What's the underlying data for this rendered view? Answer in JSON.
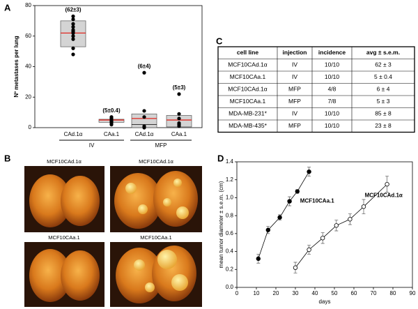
{
  "panel_labels": [
    "A",
    "B",
    "C",
    "D"
  ],
  "chart_data": [
    {
      "type": "box",
      "ylabel": "Nº metastases per lung",
      "ylim": [
        0,
        80
      ],
      "yticks": [
        0,
        20,
        40,
        60,
        80
      ],
      "categories": [
        "CAd.1α",
        "CAa.1",
        "CAd.1α",
        "CAa.1"
      ],
      "groups": [
        "IV",
        "MFP"
      ],
      "box_color": "#d4d4d4",
      "mean_color": "#e0261f",
      "boxes": [
        {
          "q1": 53,
          "median": 62,
          "q3": 70,
          "mean": 62,
          "annotation": "(62±3)",
          "points": [
            73,
            71,
            68,
            66,
            64,
            63,
            62,
            60,
            58,
            52,
            48
          ]
        },
        {
          "q1": 3.5,
          "median": 5,
          "q3": 5.5,
          "mean": 5,
          "annotation": "(5±0.4)",
          "points": [
            7,
            6,
            5,
            5,
            4,
            4,
            3,
            2
          ]
        },
        {
          "q1": 0,
          "median": 2,
          "q3": 9,
          "mean": 6,
          "annotation": "(6±4)",
          "points": [
            36,
            11,
            7,
            1,
            0
          ]
        },
        {
          "q1": 0.5,
          "median": 5,
          "q3": 8,
          "mean": 5,
          "annotation": "(5±3)",
          "points": [
            22,
            9,
            6,
            3,
            2,
            1
          ]
        }
      ]
    },
    {
      "type": "line",
      "xlabel": "days",
      "ylabel": "mean tumor diameter ± s.e.m. (cm)",
      "xlim": [
        0,
        90
      ],
      "xticks": [
        0,
        10,
        20,
        30,
        40,
        50,
        60,
        70,
        80,
        90
      ],
      "ylim": [
        0,
        1.4
      ],
      "yticks": [
        {
          "value": 0,
          "label": "0.0"
        },
        0.2,
        0.4,
        0.6,
        0.8,
        {
          "value": 1,
          "label": "1.0"
        },
        1.2,
        1.4
      ],
      "series": [
        {
          "name": "MCF10CAa.1",
          "marker": "filled",
          "color": "#000000",
          "x": [
            11,
            16,
            22,
            27,
            31,
            37
          ],
          "y": [
            0.32,
            0.64,
            0.78,
            0.96,
            1.07,
            1.29
          ],
          "err": [
            0.05,
            0.04,
            0.03,
            0.05,
            0.02,
            0.05
          ]
        },
        {
          "name": "MCF10CAd.1α",
          "marker": "open",
          "color": "#000000",
          "x": [
            30,
            37,
            44,
            51,
            58,
            65,
            77
          ],
          "y": [
            0.22,
            0.42,
            0.55,
            0.69,
            0.76,
            0.9,
            1.15
          ],
          "err": [
            0.06,
            0.05,
            0.06,
            0.06,
            0.06,
            0.08,
            0.09
          ]
        }
      ]
    }
  ],
  "table": {
    "header": [
      "cell line",
      "injection",
      "incidence",
      "avg ± s.e.m."
    ],
    "rows": [
      [
        "MCF10CAd.1α",
        "IV",
        "10/10",
        "62 ± 3"
      ],
      [
        "MCF10CAa.1",
        "IV",
        "10/10",
        "5 ± 0.4"
      ],
      [
        "MCF10CAd.1α",
        "MFP",
        "4/8",
        "6 ± 4"
      ],
      [
        "MCF10CAa.1",
        "MFP",
        "7/8",
        "5 ± 3"
      ],
      [
        "MDA-MB-231*",
        "IV",
        "10/10",
        "85 ± 8"
      ],
      [
        "MDA-MB-435*",
        "MFP",
        "10/10",
        "23 ± 8"
      ]
    ]
  },
  "photos": [
    "MCF10CAd.1α",
    "MCF10CAd.1α",
    "MCF10CAa.1",
    "MCF10CAa.1"
  ]
}
